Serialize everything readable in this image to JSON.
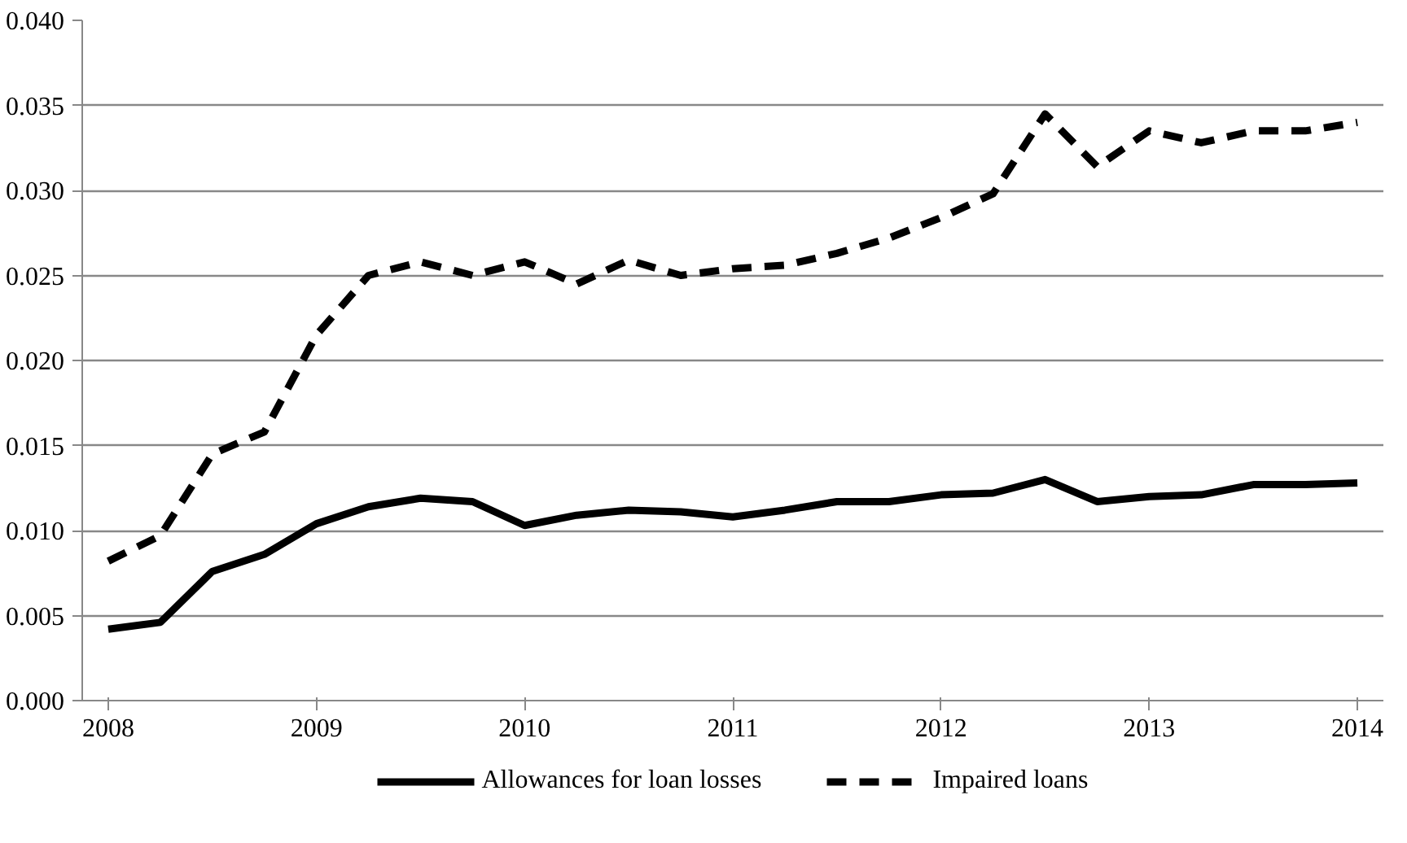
{
  "chart_data": {
    "type": "line",
    "categories": [
      "2008",
      null,
      null,
      null,
      "2009",
      null,
      null,
      null,
      "2010",
      null,
      null,
      null,
      "2011",
      null,
      null,
      null,
      "2012",
      null,
      null,
      null,
      "2013",
      null,
      null,
      null,
      "2014"
    ],
    "series": [
      {
        "name": "Allowances for loan losses",
        "color": "#000000",
        "line_style": "solid",
        "values": [
          0.0042,
          0.0046,
          0.0076,
          0.0086,
          0.0104,
          0.0114,
          0.0119,
          0.0117,
          0.0103,
          0.0109,
          0.0112,
          0.0111,
          0.0108,
          0.0112,
          0.0117,
          0.0117,
          0.0121,
          0.0122,
          0.013,
          0.0117,
          0.012,
          0.0121,
          0.0127,
          0.0127,
          0.0128
        ]
      },
      {
        "name": "Impaired loans",
        "color": "#000000",
        "line_style": "dashed",
        "values": [
          0.0082,
          0.0097,
          0.0145,
          0.0158,
          0.0215,
          0.025,
          0.0258,
          0.025,
          0.0258,
          0.0245,
          0.0259,
          0.025,
          0.0254,
          0.0256,
          0.0263,
          0.0272,
          0.0284,
          0.0298,
          0.0345,
          0.0314,
          0.0335,
          0.0328,
          0.0335,
          0.0335,
          0.034
        ]
      }
    ],
    "ylim": [
      0,
      0.04
    ],
    "yticks": [
      {
        "value": 0,
        "label": "0.000"
      },
      {
        "value": 0.005,
        "label": "0.005"
      },
      {
        "value": 0.01,
        "label": "0.010"
      },
      {
        "value": 0.015,
        "label": "0.015"
      },
      {
        "value": 0.02,
        "label": "0.020"
      },
      {
        "value": 0.025,
        "label": "0.025"
      },
      {
        "value": 0.03,
        "label": "0.030"
      },
      {
        "value": 0.035,
        "label": "0.035"
      },
      {
        "value": 0.04,
        "label": "0.040"
      }
    ],
    "grid": "y",
    "legend": "bottom",
    "marker": "none"
  }
}
